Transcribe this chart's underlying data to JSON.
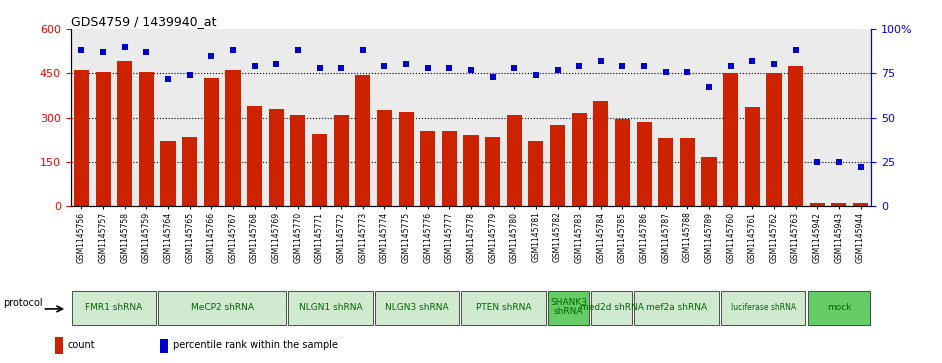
{
  "title": "GDS4759 / 1439940_at",
  "samples": [
    "GSM1145756",
    "GSM1145757",
    "GSM1145758",
    "GSM1145759",
    "GSM1145764",
    "GSM1145765",
    "GSM1145766",
    "GSM1145767",
    "GSM1145768",
    "GSM1145769",
    "GSM1145770",
    "GSM1145771",
    "GSM1145772",
    "GSM1145773",
    "GSM1145774",
    "GSM1145775",
    "GSM1145776",
    "GSM1145777",
    "GSM1145778",
    "GSM1145779",
    "GSM1145780",
    "GSM1145781",
    "GSM1145782",
    "GSM1145783",
    "GSM1145784",
    "GSM1145785",
    "GSM1145786",
    "GSM1145787",
    "GSM1145788",
    "GSM1145789",
    "GSM1145760",
    "GSM1145761",
    "GSM1145762",
    "GSM1145763",
    "GSM1145942",
    "GSM1145943",
    "GSM1145944"
  ],
  "bar_values": [
    460,
    453,
    490,
    455,
    220,
    235,
    435,
    460,
    340,
    330,
    310,
    245,
    310,
    445,
    325,
    320,
    255,
    255,
    240,
    235,
    310,
    220,
    275,
    315,
    355,
    295,
    285,
    230,
    230,
    165,
    450,
    335,
    450,
    475,
    10,
    10,
    10
  ],
  "percentile_values": [
    88,
    87,
    90,
    87,
    72,
    74,
    85,
    88,
    79,
    80,
    88,
    78,
    78,
    88,
    79,
    80,
    78,
    78,
    77,
    73,
    78,
    74,
    77,
    79,
    82,
    79,
    79,
    76,
    76,
    67,
    79,
    82,
    80,
    88,
    25,
    25,
    22
  ],
  "groups": [
    {
      "label": "FMR1 shRNA",
      "start": 0,
      "end": 4,
      "color": "#d0ead0"
    },
    {
      "label": "MeCP2 shRNA",
      "start": 4,
      "end": 10,
      "color": "#d0ead0"
    },
    {
      "label": "NLGN1 shRNA",
      "start": 10,
      "end": 14,
      "color": "#d0ead0"
    },
    {
      "label": "NLGN3 shRNA",
      "start": 14,
      "end": 18,
      "color": "#d0ead0"
    },
    {
      "label": "PTEN shRNA",
      "start": 18,
      "end": 22,
      "color": "#d0ead0"
    },
    {
      "label": "SHANK3\nshRNA",
      "start": 22,
      "end": 24,
      "color": "#66cc66"
    },
    {
      "label": "med2d shRNA",
      "start": 24,
      "end": 26,
      "color": "#d0ead0"
    },
    {
      "label": "mef2a shRNA",
      "start": 26,
      "end": 30,
      "color": "#d0ead0"
    },
    {
      "label": "luciferase shRNA",
      "start": 30,
      "end": 34,
      "color": "#d0ead0"
    },
    {
      "label": "mock",
      "start": 34,
      "end": 37,
      "color": "#66cc66"
    }
  ],
  "bar_color": "#cc2200",
  "percentile_color": "#0000cc",
  "left_ylim": [
    0,
    600
  ],
  "right_ylim": [
    0,
    100
  ],
  "left_yticks": [
    0,
    150,
    300,
    450,
    600
  ],
  "right_yticks": [
    0,
    25,
    50,
    75,
    100
  ],
  "grid_values": [
    150,
    300,
    450
  ],
  "bg_color": "#ffffff",
  "protocol_label": "protocol"
}
